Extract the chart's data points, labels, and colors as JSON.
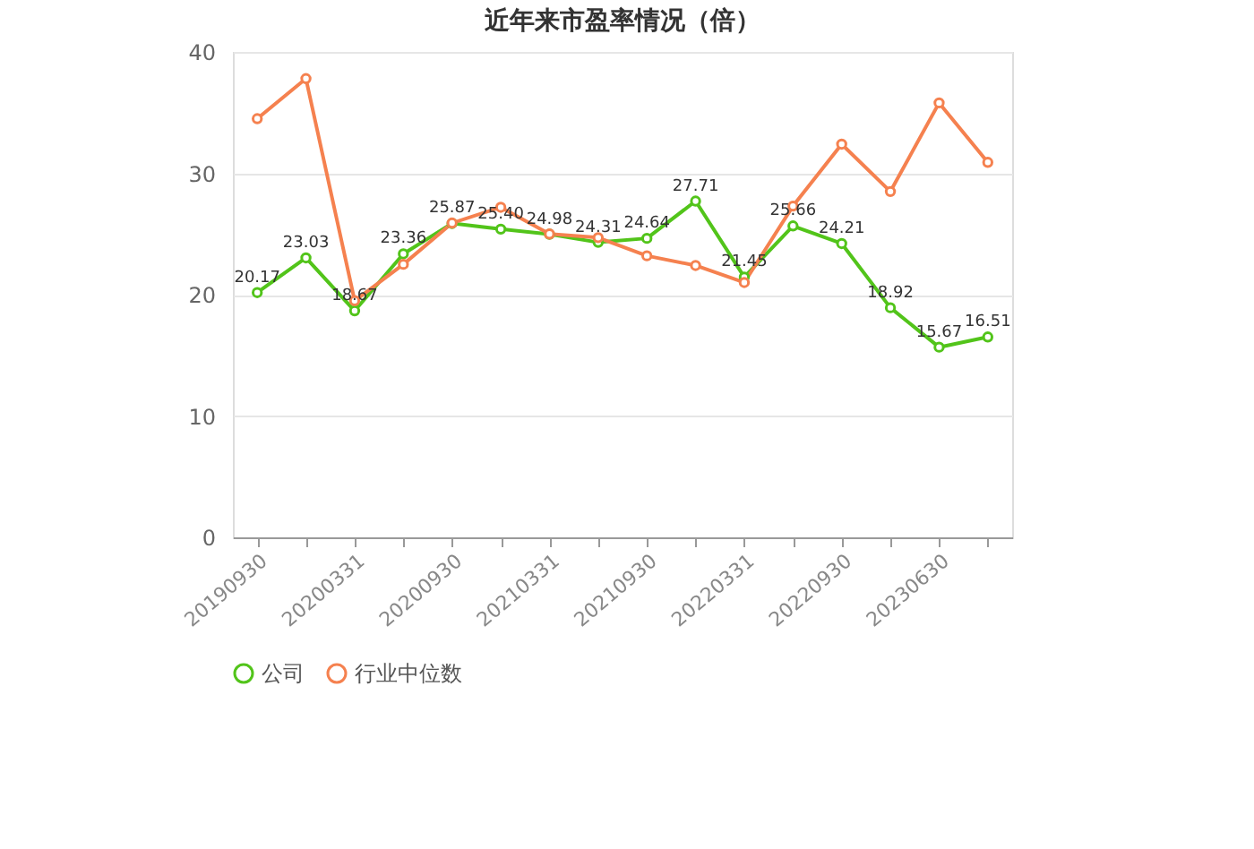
{
  "chart_data": {
    "type": "line",
    "title": "近年来市盈率情况（倍）",
    "categories": [
      "20190930",
      null,
      "20200331",
      null,
      "20200930",
      null,
      "20210331",
      null,
      "20210930",
      null,
      "20220331",
      null,
      "20220930",
      null,
      "20230630",
      null
    ],
    "series": [
      {
        "name": "公司",
        "color": "#52c41a",
        "values": [
          20.17,
          23.03,
          18.67,
          23.36,
          25.87,
          25.4,
          24.98,
          24.31,
          24.64,
          27.71,
          21.45,
          25.66,
          24.21,
          18.92,
          15.67,
          16.51
        ],
        "value_labels": [
          "20.17",
          "23.03",
          "18.67",
          "23.36",
          "25.87",
          "25.40",
          "24.98",
          "24.31",
          "24.64",
          "27.71",
          "21.45",
          "25.66",
          "24.21",
          "18.92",
          "15.67",
          "16.51"
        ]
      },
      {
        "name": "行业中位数",
        "color": "#f5814f",
        "values": [
          34.5,
          37.8,
          19.5,
          22.5,
          25.9,
          27.2,
          25.0,
          24.7,
          23.2,
          22.4,
          21.0,
          27.3,
          32.4,
          28.5,
          35.8,
          30.9
        ]
      }
    ],
    "ylim": [
      0,
      40
    ],
    "yticks": [
      0,
      10,
      20,
      30,
      40
    ],
    "grid": "y",
    "legend": "bottom",
    "marker": "circle",
    "line_style": "solid"
  }
}
